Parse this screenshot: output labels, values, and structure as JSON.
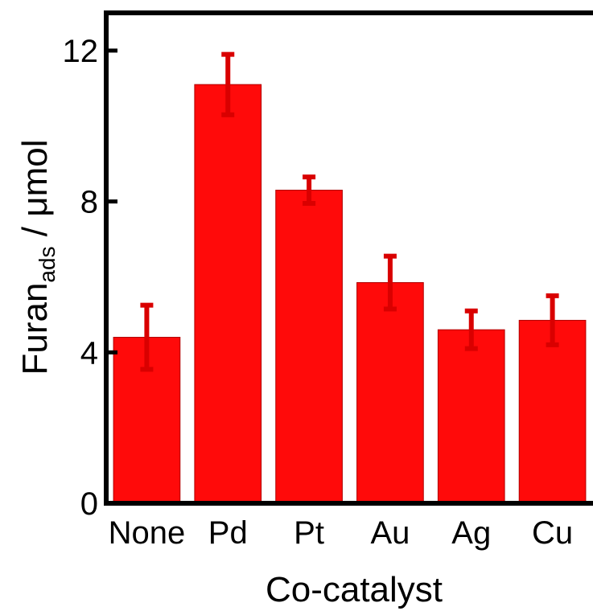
{
  "chart_data": {
    "type": "bar",
    "categories": [
      "None",
      "Pd",
      "Pt",
      "Au",
      "Ag",
      "Cu"
    ],
    "values": [
      4.4,
      11.1,
      8.3,
      5.85,
      4.6,
      4.85
    ],
    "errors": [
      0.85,
      0.8,
      0.35,
      0.7,
      0.5,
      0.65
    ],
    "xlabel": "Co-catalyst",
    "ylabel": {
      "main": "Furan",
      "sub": "ads",
      "unit": " / μmol"
    },
    "ylim": [
      0,
      13
    ],
    "yticks": [
      0,
      4,
      8,
      12
    ],
    "ytick_labels": [
      "0",
      "4",
      "8",
      "12"
    ],
    "grid": false,
    "colors": {
      "bar": "#ff0a0a",
      "bar_edge": "#b00000",
      "error": "#d90000",
      "axis": "#000000"
    }
  }
}
